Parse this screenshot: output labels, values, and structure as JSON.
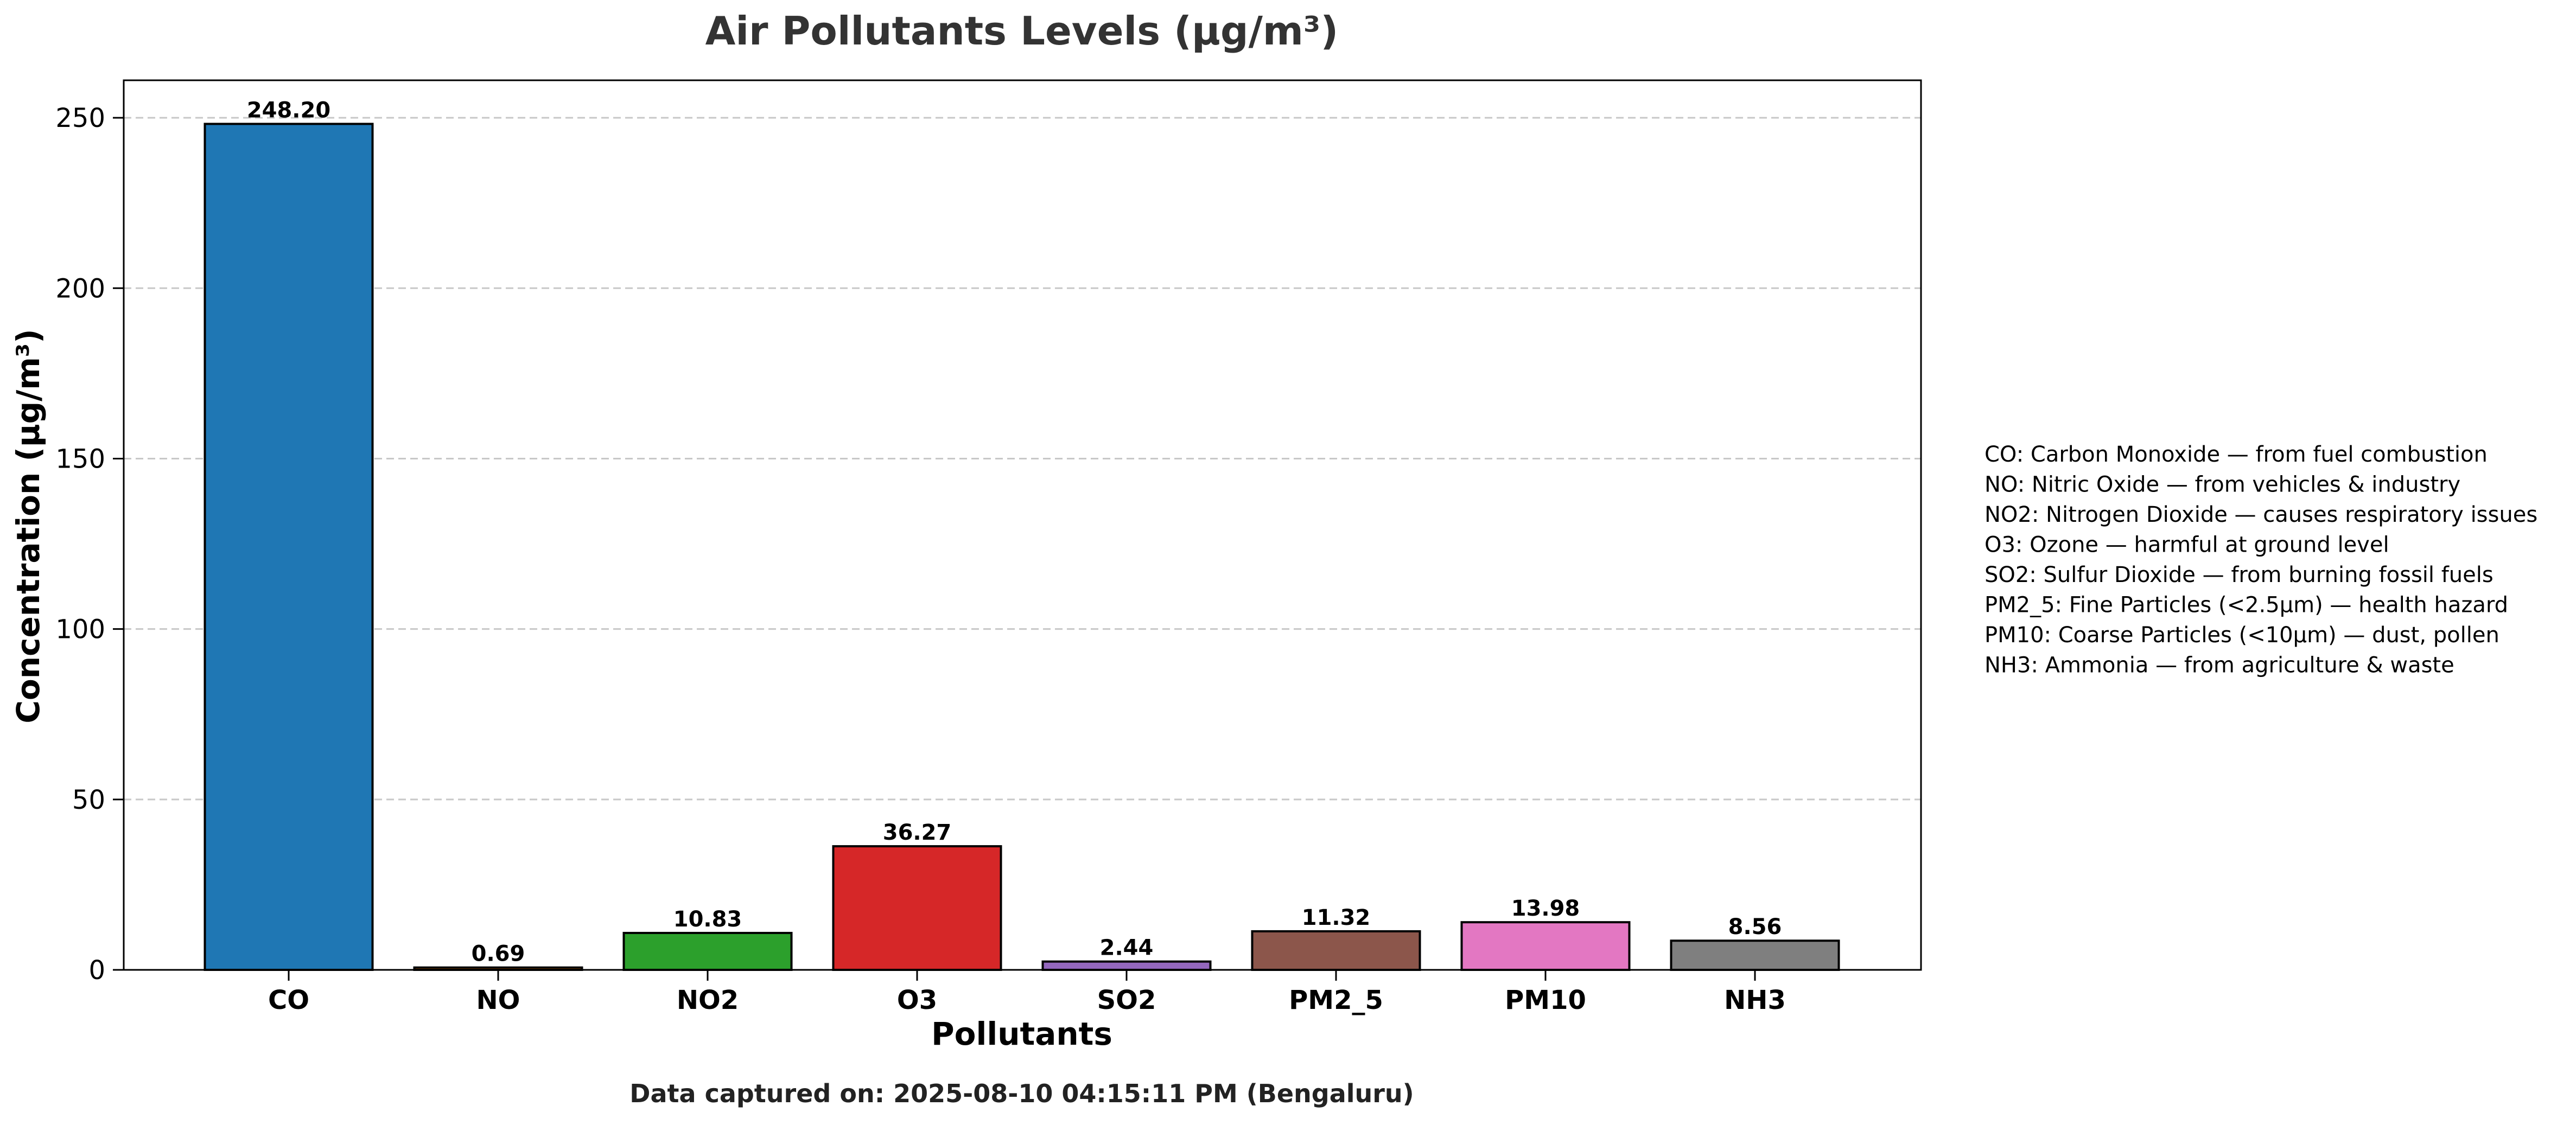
{
  "chart_data": {
    "type": "bar",
    "title": "Air Pollutants Levels (µg/m³)",
    "xlabel": "Pollutants",
    "ylabel": "Concentration (µg/m³)",
    "categories": [
      "CO",
      "NO",
      "NO2",
      "O3",
      "SO2",
      "PM2_5",
      "PM10",
      "NH3"
    ],
    "values": [
      248.2,
      0.69,
      10.83,
      36.27,
      2.44,
      11.32,
      13.98,
      8.56
    ],
    "value_labels": [
      "248.20",
      "0.69",
      "10.83",
      "36.27",
      "2.44",
      "11.32",
      "13.98",
      "8.56"
    ],
    "colors": [
      "#1f77b4",
      "#ff7f0e",
      "#2ca02c",
      "#d62728",
      "#9467bd",
      "#8c564b",
      "#e377c2",
      "#7f7f7f"
    ],
    "ylim": [
      0,
      261
    ],
    "yticks": [
      0,
      50,
      100,
      150,
      200,
      250
    ],
    "grid": "y-dashed",
    "legend_notes": [
      "CO: Carbon Monoxide — from fuel combustion",
      "NO: Nitric Oxide — from vehicles & industry",
      "NO2: Nitrogen Dioxide — causes respiratory issues",
      "O3: Ozone — harmful at ground level",
      "SO2: Sulfur Dioxide — from burning fossil fuels",
      "PM2_5: Fine Particles (<2.5µm) — health hazard",
      "PM10: Coarse Particles (<10µm) — dust, pollen",
      "NH3: Ammonia — from agriculture & waste"
    ],
    "footer": "Data captured on: 2025-08-10 04:15:11 PM (Bengaluru)"
  }
}
